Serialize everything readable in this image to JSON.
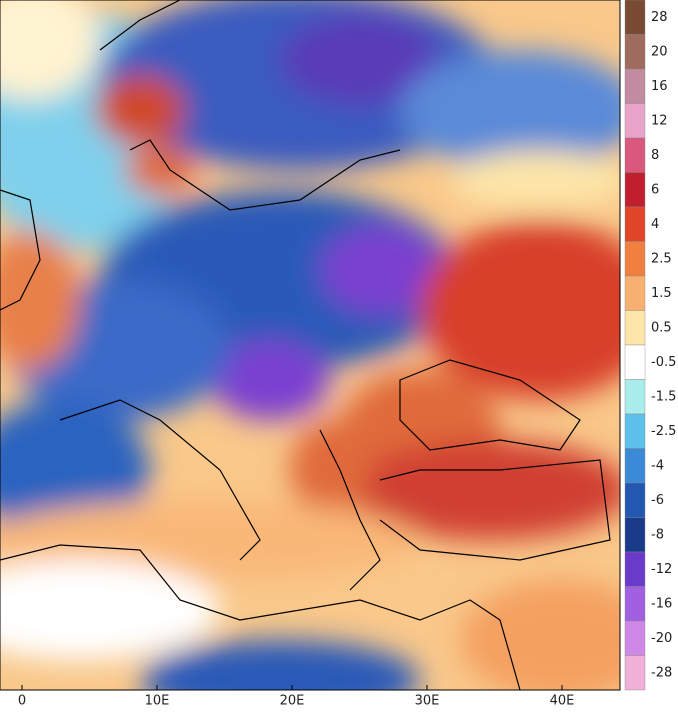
{
  "colorbar": {
    "labels": [
      28,
      20,
      16,
      12,
      8,
      6,
      4,
      2.5,
      1.5,
      0.5,
      -0.5,
      -1.5,
      -2.5,
      -4,
      -6,
      -8,
      -12,
      -16,
      -20,
      -28
    ],
    "colors": [
      "#7a4b33",
      "#9e6b5e",
      "#c28ba0",
      "#e8a3c8",
      "#d8587e",
      "#c0202e",
      "#e0452a",
      "#f08040",
      "#f8b070",
      "#fde6a8",
      "#ffffff",
      "#a8ecec",
      "#5cc0e8",
      "#3a8ad8",
      "#2258b0",
      "#1a3a8a",
      "#6a3ac8",
      "#a060e0",
      "#d088e8",
      "#f0b0d8"
    ]
  },
  "x_axis": {
    "labels": [
      "0",
      "10E",
      "20E",
      "30E",
      "40E"
    ]
  }
}
